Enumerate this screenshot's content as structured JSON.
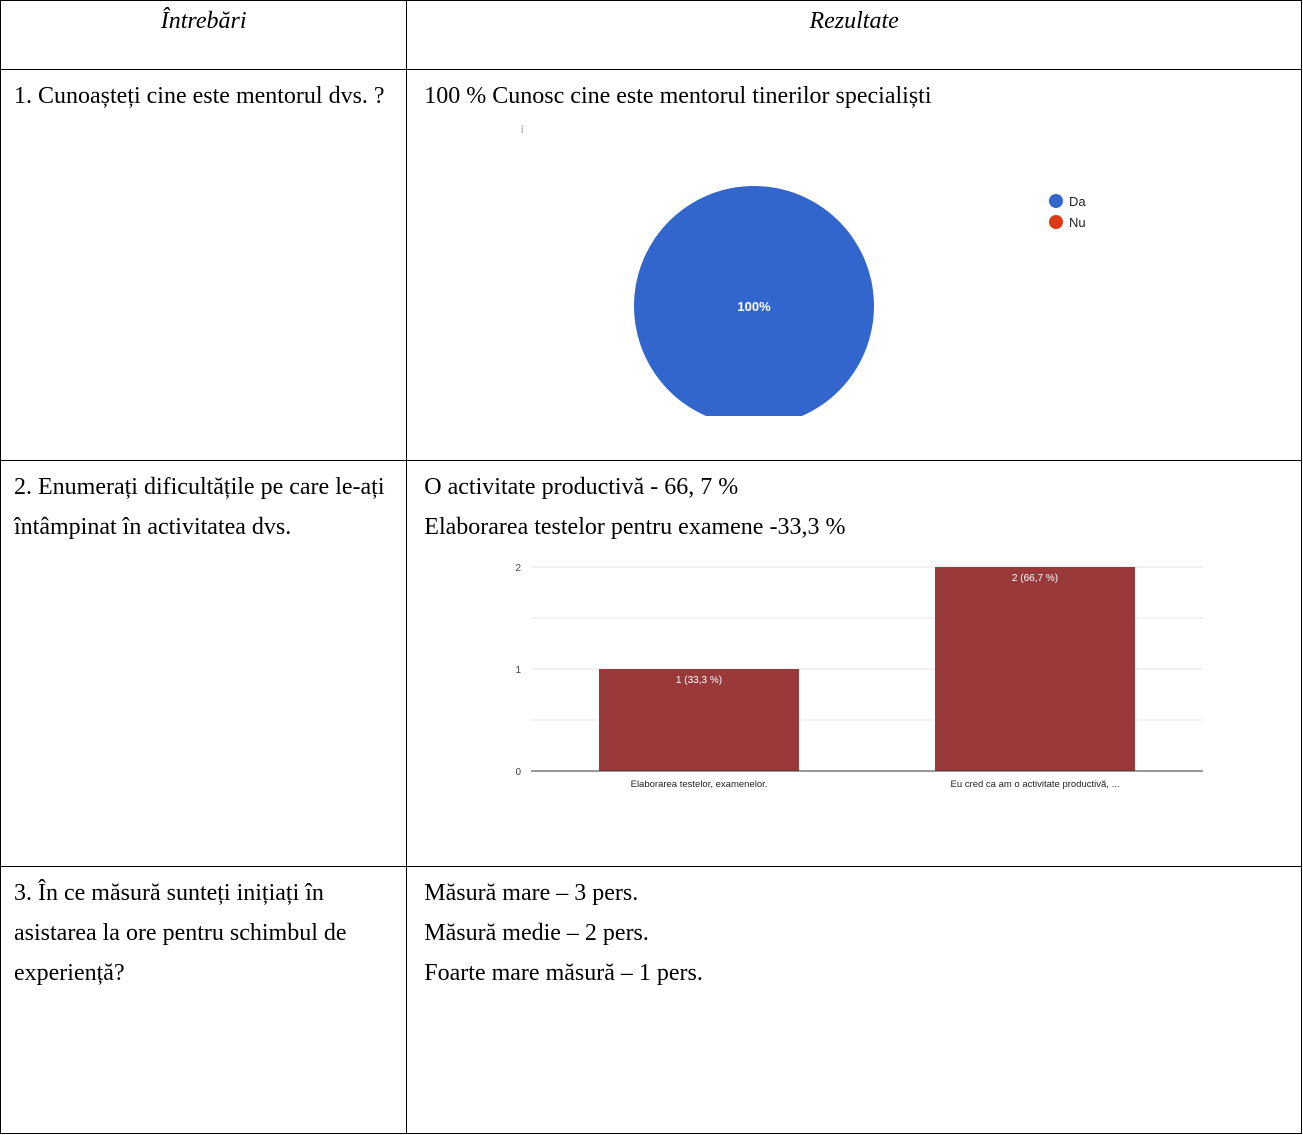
{
  "header": {
    "col1": "Întrebări",
    "col2": "Rezultate"
  },
  "rows": [
    {
      "question": "1. Cunoașteți cine este mentorul dvs. ?",
      "results": [
        "100 % Cunosc cine este mentorul tinerilor specialiști"
      ]
    },
    {
      "question": "2. Enumerați dificultățile pe care le-ați întâmpinat în activitatea dvs.",
      "results": [
        "O activitate productivă  - 66, 7 %",
        "Elaborarea testelor pentru examene -33,3 %"
      ]
    },
    {
      "question": "3. În ce măsură sunteți inițiați în asistarea la ore pentru schimbul de experiență?",
      "results": [
        "Măsură mare – 3 pers.",
        "Măsură medie – 2 pers.",
        "Foarte mare măsură – 1 pers."
      ]
    }
  ],
  "chart_data": [
    {
      "type": "pie",
      "marker": "i",
      "slices": [
        {
          "label": "Da",
          "value": 100,
          "percent_label": "100%",
          "color": "#3366cc"
        },
        {
          "label": "Nu",
          "value": 0,
          "percent_label": "",
          "color": "#dc3912"
        }
      ],
      "legend": "right"
    },
    {
      "type": "bar",
      "categories": [
        "Elaborarea testelor, examenelor.",
        "Eu cred ca am o activitate productivă, ..."
      ],
      "values": [
        1,
        2
      ],
      "data_labels": [
        "1 (33,3 %)",
        "2 (66,7 %)"
      ],
      "ylim": [
        0,
        2
      ],
      "yticks": [
        "0",
        "1",
        "2"
      ],
      "color": "#993939",
      "grid": true
    }
  ]
}
